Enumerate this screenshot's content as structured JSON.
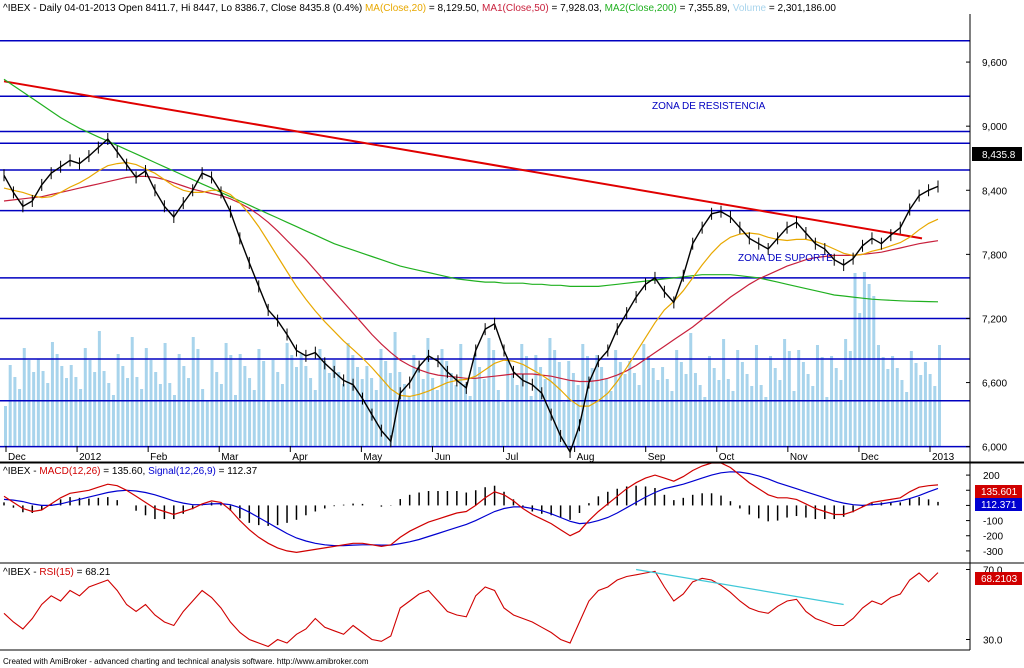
{
  "header": {
    "symbol": "^IBEX",
    "description": "- Daily 04-01-2013 Open 8411.7, Hi 8447, Lo 8386.7, Close 8435.8 (0.4%)",
    "ma20_label": "MA(Close,20)",
    "ma20_value": "= 8,129.50,",
    "ma50_label": "MA1(Close,50)",
    "ma50_value": "= 7,928.03,",
    "ma200_label": "MA2(Close,200)",
    "ma200_value": "= 7,355.89,",
    "volume_label": "Volume",
    "volume_value": "= 2,301,186.00"
  },
  "annotations": {
    "resistance": "ZONA DE RESISTENCIA",
    "support": "ZONA DE SUPORTE",
    "last_price": "8,435.8"
  },
  "macd": {
    "label_prefix": "^IBEX -",
    "macd_label": "MACD(12,26)",
    "macd_value": "= 135.60,",
    "signal_label": "Signal(12,26,9)",
    "signal_value": "= 112.37",
    "macd_badge": "135.601",
    "signal_badge": "112.371",
    "ticks": [
      "200",
      "100",
      "0",
      "-100",
      "-200",
      "-300"
    ]
  },
  "rsi": {
    "label_prefix": "^IBEX -",
    "rsi_label": "RSI(15)",
    "rsi_value": "= 68.21",
    "badge": "68.2103",
    "ticks": [
      "70.0",
      "30.0"
    ]
  },
  "footer": {
    "credit": "Created with AmiBroker - advanced charting and technical analysis software. http://www.amibroker.com"
  },
  "colors": {
    "price": "#000000",
    "ma20": "#e8a800",
    "ma50": "#c8203c",
    "ma200": "#20b020",
    "trendline": "#e00000",
    "levels": "#0000c0",
    "volume": "#a8d4ec",
    "macd": "#d00000",
    "signal": "#0000d0",
    "rsi": "#d00000",
    "rsi_trend": "#40c8d8"
  },
  "chart_data": [
    {
      "type": "line",
      "title": "^IBEX Daily",
      "x_tick_labels": [
        "Dec",
        "2012",
        "Feb",
        "Mar",
        "Apr",
        "May",
        "Jun",
        "Jul",
        "Aug",
        "Sep",
        "Oct",
        "Nov",
        "Dec",
        "2013"
      ],
      "y_tick_labels": [
        "9,600",
        "9,000",
        "8,400",
        "7,800",
        "7,200",
        "6,600",
        "6,000"
      ],
      "ylim": [
        5950,
        10050
      ],
      "horizontal_levels": [
        9800,
        9280,
        8950,
        8840,
        8590,
        8210,
        7580,
        7200,
        6820,
        6430,
        6000
      ],
      "series": [
        {
          "name": "Close",
          "values": [
            8540,
            8380,
            8250,
            8300,
            8450,
            8560,
            8620,
            8680,
            8650,
            8720,
            8800,
            8880,
            8760,
            8640,
            8520,
            8580,
            8400,
            8250,
            8150,
            8280,
            8400,
            8560,
            8520,
            8380,
            8200,
            7950,
            7720,
            7500,
            7280,
            7180,
            7050,
            6900,
            6850,
            6880,
            6780,
            6700,
            6620,
            6580,
            6450,
            6300,
            6150,
            6050,
            6500,
            6600,
            6750,
            6850,
            6800,
            6700,
            6620,
            6550,
            6900,
            7100,
            7150,
            6900,
            6700,
            6620,
            6580,
            6500,
            6300,
            6100,
            5950,
            6200,
            6600,
            6800,
            6900,
            7100,
            7250,
            7400,
            7520,
            7580,
            7450,
            7350,
            7600,
            7900,
            8050,
            8180,
            8200,
            8150,
            8050,
            7950,
            7900,
            7850,
            7950,
            8050,
            8100,
            8000,
            7900,
            7850,
            7750,
            7700,
            7760,
            7880,
            7950,
            7900,
            7980,
            8050,
            8220,
            8350,
            8400,
            8435.8
          ]
        },
        {
          "name": "MA(Close,20)",
          "values": [
            8420,
            8400,
            8380,
            8350,
            8330,
            8340,
            8380,
            8430,
            8470,
            8520,
            8580,
            8630,
            8650,
            8660,
            8640,
            8600,
            8560,
            8500,
            8440,
            8400,
            8380,
            8380,
            8400,
            8400,
            8360,
            8280,
            8180,
            8060,
            7920,
            7780,
            7640,
            7500,
            7380,
            7270,
            7170,
            7080,
            6990,
            6910,
            6830,
            6740,
            6640,
            6540,
            6480,
            6470,
            6490,
            6520,
            6560,
            6600,
            6620,
            6630,
            6660,
            6720,
            6780,
            6810,
            6800,
            6770,
            6720,
            6670,
            6610,
            6530,
            6440,
            6380,
            6380,
            6430,
            6500,
            6610,
            6740,
            6880,
            7020,
            7160,
            7280,
            7360,
            7460,
            7580,
            7700,
            7810,
            7900,
            7960,
            7990,
            8000,
            7990,
            7960,
            7940,
            7930,
            7940,
            7940,
            7920,
            7890,
            7850,
            7810,
            7790,
            7800,
            7830,
            7850,
            7880,
            7910,
            7960,
            8030,
            8090,
            8129.5
          ]
        },
        {
          "name": "MA1(Close,50)",
          "values": [
            8300,
            8310,
            8320,
            8330,
            8340,
            8360,
            8380,
            8400,
            8420,
            8440,
            8460,
            8480,
            8500,
            8520,
            8530,
            8530,
            8520,
            8500,
            8470,
            8440,
            8410,
            8390,
            8370,
            8350,
            8320,
            8280,
            8230,
            8170,
            8100,
            8020,
            7930,
            7840,
            7750,
            7650,
            7550,
            7450,
            7350,
            7250,
            7150,
            7050,
            6960,
            6880,
            6810,
            6760,
            6720,
            6690,
            6670,
            6660,
            6650,
            6640,
            6640,
            6650,
            6660,
            6670,
            6680,
            6680,
            6680,
            6670,
            6660,
            6640,
            6620,
            6610,
            6610,
            6620,
            6640,
            6670,
            6710,
            6760,
            6820,
            6880,
            6940,
            7000,
            7060,
            7120,
            7190,
            7260,
            7330,
            7400,
            7460,
            7520,
            7570,
            7610,
            7650,
            7690,
            7720,
            7750,
            7770,
            7780,
            7790,
            7790,
            7790,
            7800,
            7810,
            7820,
            7840,
            7860,
            7880,
            7900,
            7915,
            7928.03
          ]
        },
        {
          "name": "MA2(Close,200)",
          "values": [
            9440,
            9380,
            9320,
            9260,
            9200,
            9140,
            9080,
            9030,
            8980,
            8940,
            8900,
            8860,
            8820,
            8780,
            8740,
            8700,
            8660,
            8620,
            8580,
            8540,
            8500,
            8460,
            8420,
            8380,
            8340,
            8300,
            8260,
            8220,
            8180,
            8140,
            8100,
            8060,
            8020,
            7980,
            7940,
            7900,
            7870,
            7840,
            7810,
            7780,
            7750,
            7720,
            7690,
            7670,
            7650,
            7630,
            7610,
            7590,
            7570,
            7560,
            7550,
            7540,
            7540,
            7530,
            7530,
            7530,
            7520,
            7520,
            7510,
            7510,
            7500,
            7500,
            7500,
            7500,
            7510,
            7520,
            7530,
            7540,
            7550,
            7560,
            7570,
            7580,
            7590,
            7600,
            7610,
            7610,
            7610,
            7610,
            7600,
            7590,
            7580,
            7560,
            7540,
            7520,
            7500,
            7480,
            7460,
            7440,
            7420,
            7410,
            7400,
            7390,
            7380,
            7375,
            7370,
            7365,
            7362,
            7360,
            7358,
            7355.89
          ]
        }
      ]
    },
    {
      "type": "line",
      "title": "MACD(12,26)",
      "y_tick_labels": [
        "200",
        "100",
        "0",
        "-100",
        "-200",
        "-300"
      ],
      "ylim": [
        -360,
        260
      ],
      "series": [
        {
          "name": "MACD(12,26)",
          "values": [
            60,
            20,
            -20,
            -40,
            -30,
            10,
            50,
            80,
            90,
            100,
            120,
            140,
            130,
            100,
            60,
            20,
            -20,
            -40,
            -60,
            -40,
            -20,
            10,
            30,
            20,
            -30,
            -100,
            -160,
            -210,
            -250,
            -280,
            -300,
            -310,
            -300,
            -290,
            -280,
            -270,
            -260,
            -250,
            -250,
            -260,
            -270,
            -260,
            -210,
            -170,
            -140,
            -110,
            -90,
            -70,
            -50,
            -40,
            0,
            50,
            90,
            70,
            30,
            -20,
            -60,
            -90,
            -120,
            -160,
            -200,
            -170,
            -100,
            -40,
            10,
            60,
            110,
            150,
            180,
            200,
            180,
            160,
            190,
            230,
            260,
            280,
            280,
            250,
            200,
            150,
            110,
            70,
            50,
            50,
            40,
            10,
            -20,
            -40,
            -60,
            -60,
            -40,
            -10,
            20,
            30,
            40,
            50,
            90,
            120,
            130,
            135.6
          ]
        },
        {
          "name": "Signal(12,26,9)",
          "values": [
            40,
            35,
            25,
            10,
            0,
            0,
            10,
            25,
            40,
            55,
            70,
            85,
            95,
            100,
            95,
            85,
            70,
            50,
            30,
            15,
            5,
            5,
            10,
            12,
            5,
            -15,
            -45,
            -80,
            -115,
            -150,
            -185,
            -215,
            -235,
            -250,
            -260,
            -265,
            -265,
            -262,
            -260,
            -260,
            -262,
            -262,
            -252,
            -240,
            -225,
            -205,
            -185,
            -165,
            -145,
            -125,
            -100,
            -70,
            -40,
            -20,
            -10,
            -10,
            -20,
            -35,
            -55,
            -80,
            -105,
            -120,
            -115,
            -100,
            -80,
            -50,
            -15,
            20,
            55,
            85,
            110,
            125,
            140,
            160,
            180,
            200,
            215,
            222,
            220,
            210,
            195,
            175,
            150,
            130,
            110,
            90,
            70,
            50,
            30,
            15,
            5,
            0,
            5,
            10,
            20,
            30,
            45,
            65,
            90,
            112.37
          ]
        }
      ]
    },
    {
      "type": "line",
      "title": "RSI(15)",
      "y_tick_labels": [
        "70.0",
        "30.0"
      ],
      "ylim": [
        24,
        72
      ],
      "series": [
        {
          "name": "RSI(15)",
          "values": [
            45,
            40,
            36,
            42,
            50,
            55,
            52,
            58,
            55,
            60,
            62,
            64,
            58,
            50,
            46,
            50,
            44,
            40,
            38,
            46,
            52,
            58,
            54,
            48,
            40,
            34,
            30,
            28,
            26,
            30,
            28,
            33,
            36,
            42,
            37,
            35,
            33,
            38,
            34,
            30,
            29,
            32,
            48,
            52,
            56,
            58,
            52,
            46,
            44,
            43,
            55,
            60,
            58,
            48,
            44,
            42,
            40,
            37,
            34,
            30,
            28,
            40,
            52,
            58,
            60,
            64,
            66,
            67,
            68,
            69,
            60,
            52,
            56,
            63,
            65,
            64,
            61,
            57,
            52,
            48,
            46,
            45,
            49,
            52,
            53,
            46,
            42,
            40,
            38,
            38,
            42,
            48,
            52,
            50,
            54,
            56,
            64,
            68,
            63,
            68.21
          ]
        }
      ]
    }
  ]
}
